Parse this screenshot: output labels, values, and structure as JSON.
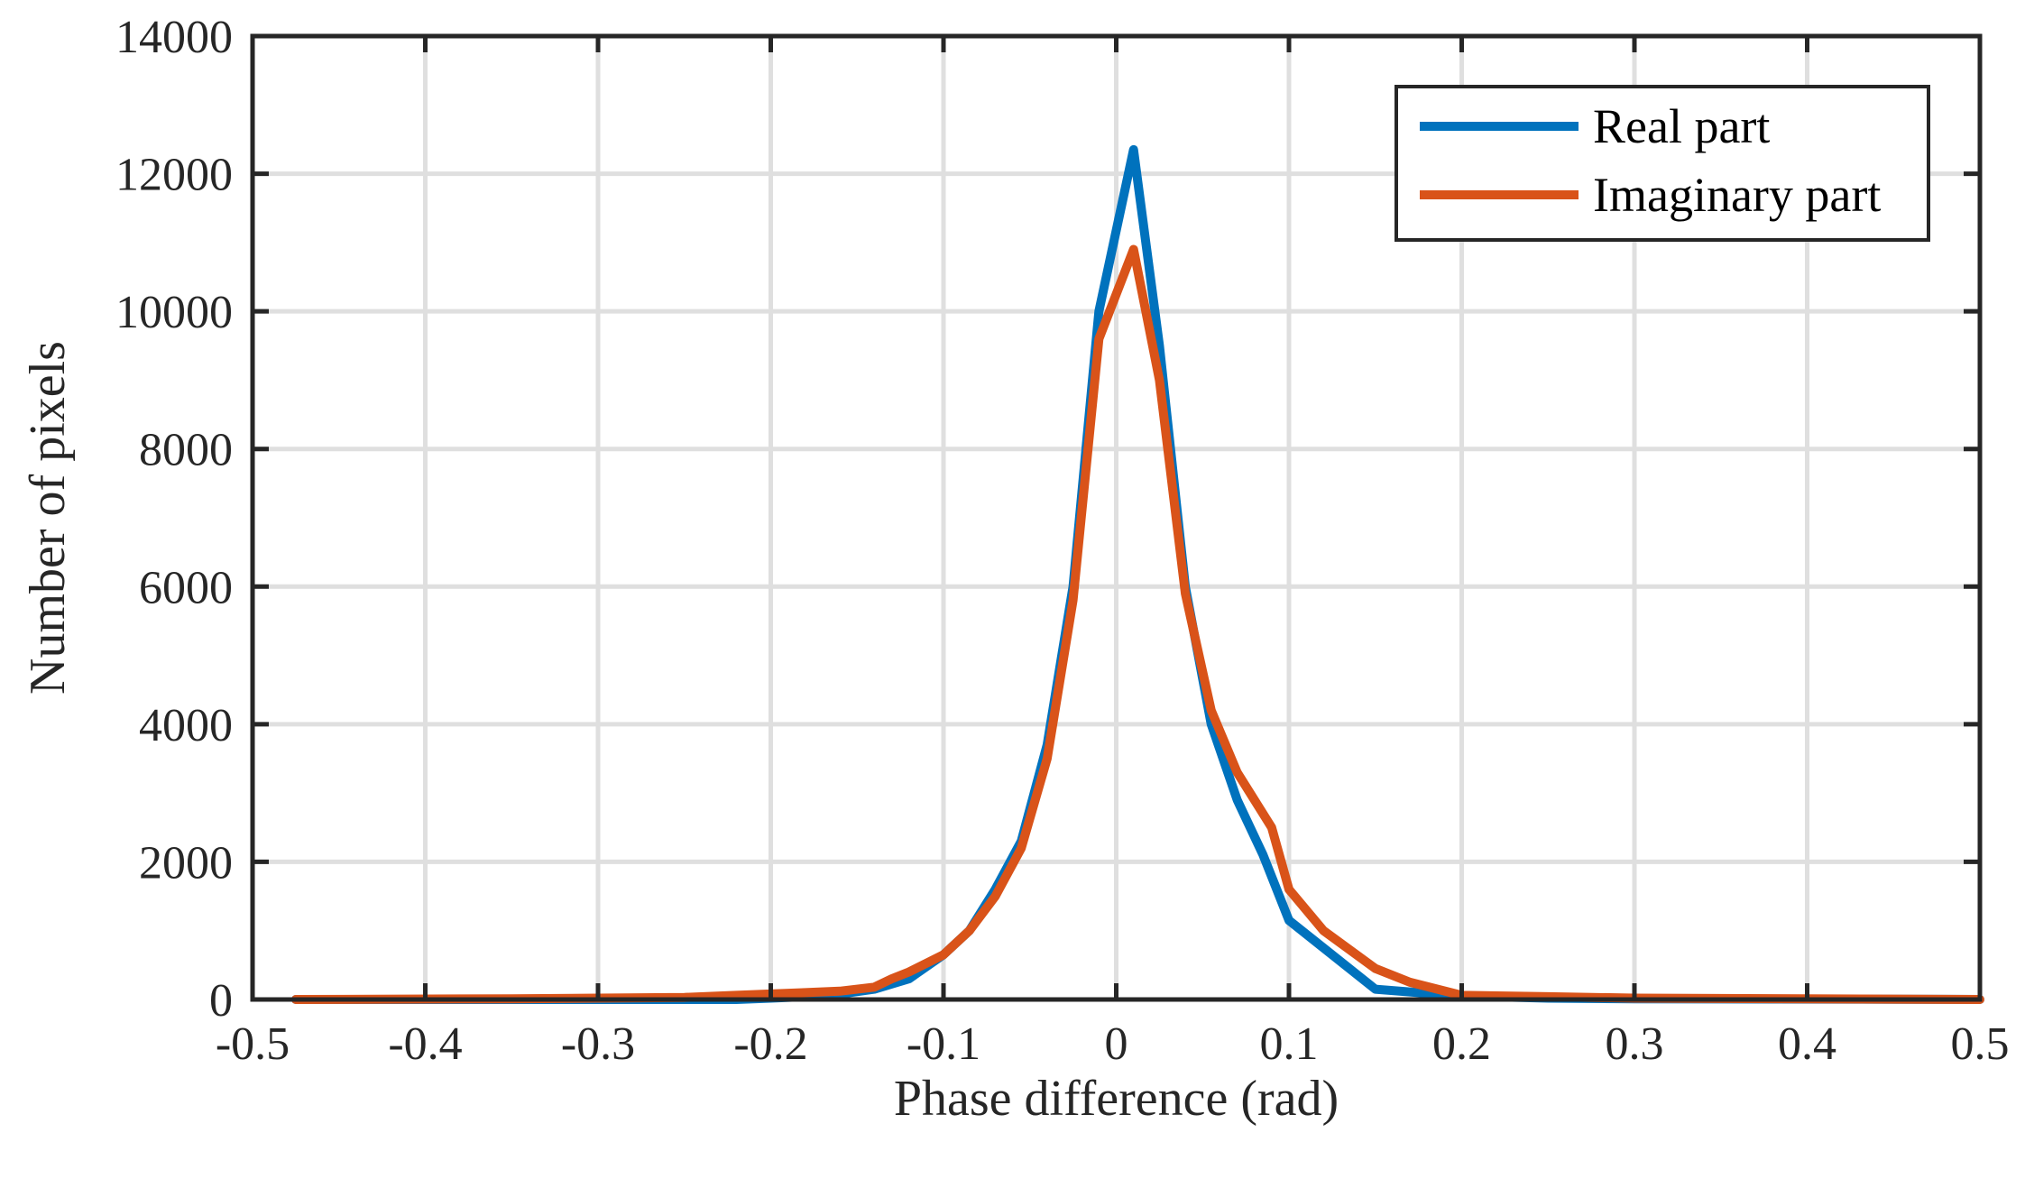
{
  "chart_data": {
    "type": "line",
    "title": "",
    "xlabel": "Phase difference (rad)",
    "ylabel": "Number of pixels",
    "xlim": [
      -0.5,
      0.5
    ],
    "ylim": [
      0,
      14000
    ],
    "xticks": [
      -0.5,
      -0.4,
      -0.3,
      -0.2,
      -0.1,
      0,
      0.1,
      0.2,
      0.3,
      0.4,
      0.5
    ],
    "xtick_labels": [
      "-0.5",
      "-0.4",
      "-0.3",
      "-0.2",
      "-0.1",
      "0",
      "0.1",
      "0.2",
      "0.3",
      "0.4",
      "0.5"
    ],
    "yticks": [
      0,
      2000,
      4000,
      6000,
      8000,
      10000,
      12000,
      14000
    ],
    "ytick_labels": [
      "0",
      "2000",
      "4000",
      "6000",
      "8000",
      "10000",
      "12000",
      "14000"
    ],
    "grid": true,
    "legend_position": "top-right",
    "series": [
      {
        "name": "Real part",
        "color": "#0072BD",
        "x": [
          -0.475,
          -0.35,
          -0.3,
          -0.25,
          -0.22,
          -0.2,
          -0.18,
          -0.16,
          -0.14,
          -0.12,
          -0.1,
          -0.085,
          -0.07,
          -0.055,
          -0.04,
          -0.025,
          -0.01,
          0.01,
          0.025,
          0.04,
          0.055,
          0.07,
          0.085,
          0.1,
          0.12,
          0.15,
          0.2,
          0.25,
          0.3,
          0.5
        ],
        "values": [
          0,
          0,
          0,
          0,
          0,
          20,
          40,
          80,
          150,
          300,
          650,
          1000,
          1600,
          2300,
          3700,
          6000,
          10000,
          12350,
          9500,
          6000,
          4000,
          2900,
          2100,
          1150,
          750,
          150,
          50,
          20,
          10,
          0
        ]
      },
      {
        "name": "Imaginary part",
        "color": "#D95319",
        "x": [
          -0.475,
          -0.35,
          -0.3,
          -0.25,
          -0.22,
          -0.2,
          -0.18,
          -0.16,
          -0.14,
          -0.13,
          -0.12,
          -0.1,
          -0.085,
          -0.07,
          -0.055,
          -0.04,
          -0.025,
          -0.01,
          0.01,
          0.025,
          0.04,
          0.055,
          0.07,
          0.09,
          0.1,
          0.12,
          0.15,
          0.17,
          0.2,
          0.25,
          0.3,
          0.5
        ],
        "values": [
          0,
          10,
          20,
          30,
          60,
          80,
          100,
          120,
          180,
          300,
          400,
          650,
          1000,
          1500,
          2200,
          3500,
          5800,
          9600,
          10900,
          9000,
          5900,
          4200,
          3300,
          2500,
          1600,
          1000,
          450,
          250,
          60,
          40,
          20,
          0
        ]
      }
    ]
  }
}
